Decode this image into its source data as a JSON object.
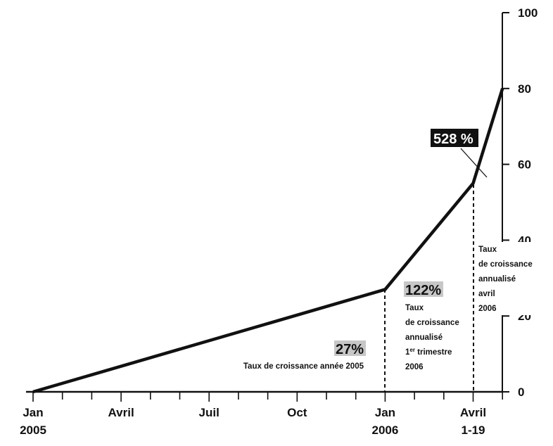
{
  "chart_data": {
    "type": "line",
    "title": "",
    "xlabel": "",
    "ylabel": "",
    "ylim": [
      0,
      100
    ],
    "yticks": [
      0,
      20,
      40,
      60,
      80,
      100
    ],
    "x_tick_labels": [
      {
        "line1": "Jan",
        "line2": "2005",
        "month_index": 0
      },
      {
        "line1": "Avril",
        "line2": "",
        "month_index": 3
      },
      {
        "line1": "Juil",
        "line2": "",
        "month_index": 6
      },
      {
        "line1": "Oct",
        "line2": "",
        "month_index": 9
      },
      {
        "line1": "Jan",
        "line2": "2006",
        "month_index": 12
      },
      {
        "line1": "Avril",
        "line2": "1-19",
        "month_index": 15
      }
    ],
    "series": [
      {
        "points": [
          {
            "x": "2005-01",
            "month_index": 0,
            "y": 0
          },
          {
            "x": "2006-01",
            "month_index": 12,
            "y": 27
          },
          {
            "x": "2006-04-01",
            "month_index": 15,
            "y": 55
          },
          {
            "x": "2006-04-19",
            "month_index": 16,
            "y": 80
          }
        ]
      }
    ],
    "annotations": [
      {
        "value": "27%",
        "lines": [
          "Taux de croissance année 2005"
        ]
      },
      {
        "value": "122%",
        "lines": [
          "Taux",
          "de croissance",
          "annualisé",
          "1er trimestre",
          "2006"
        ]
      },
      {
        "value": "528 %",
        "lines": [
          "Taux",
          "de croissance",
          "annualisé",
          "avril",
          "2006"
        ]
      }
    ]
  }
}
